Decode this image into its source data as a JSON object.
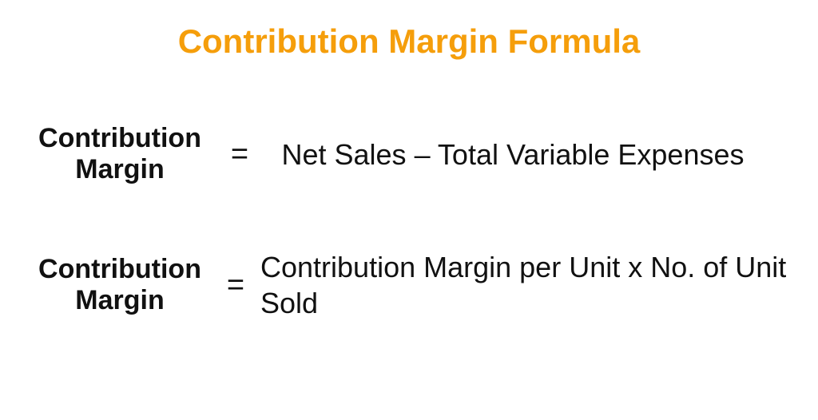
{
  "title": {
    "text": "Contribution Margin Formula",
    "color": "#f59e0b",
    "fontsize": 42,
    "fontweight": 700
  },
  "text_color": "#111111",
  "background_color": "#ffffff",
  "formulas": [
    {
      "lhs_line1": "Contribution",
      "lhs_line2": "Margin",
      "lhs_fontsize": 34,
      "lhs_width": 240,
      "equals": "=",
      "equals_fontsize": 38,
      "equals_width": 60,
      "rhs": "Net Sales – Total Variable Expenses",
      "rhs_fontsize": 36,
      "rhs_align": "center"
    },
    {
      "lhs_line1": "Contribution",
      "lhs_line2": "Margin",
      "lhs_fontsize": 34,
      "lhs_width": 240,
      "equals": "=",
      "equals_fontsize": 38,
      "equals_width": 50,
      "rhs": "Contribution Margin per Unit x No. of Unit Sold",
      "rhs_fontsize": 36,
      "rhs_align": "left"
    }
  ]
}
